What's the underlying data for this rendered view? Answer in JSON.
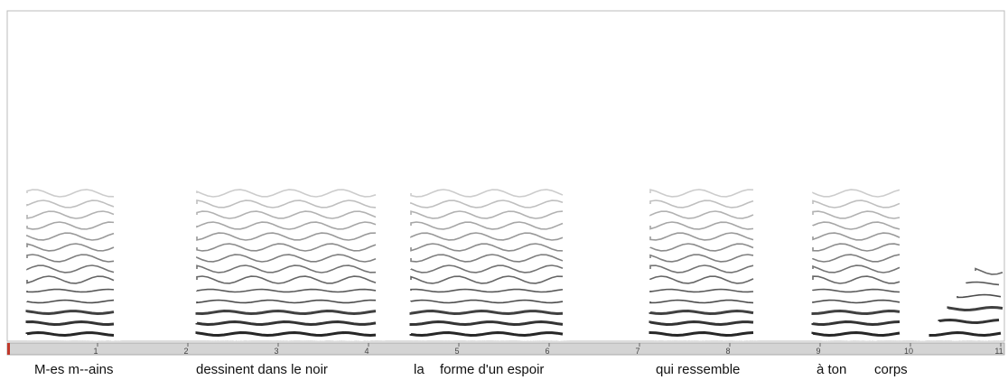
{
  "axis": {
    "ticks": [
      1,
      2,
      3,
      4,
      5,
      6,
      7,
      8,
      9,
      10,
      11
    ],
    "xlim": [
      0,
      11
    ]
  },
  "words": [
    "M-es m--ains",
    "dessinent dans le noir",
    "la",
    "forme d'un espoir",
    "qui ressemble",
    "à ton",
    "corps"
  ]
}
